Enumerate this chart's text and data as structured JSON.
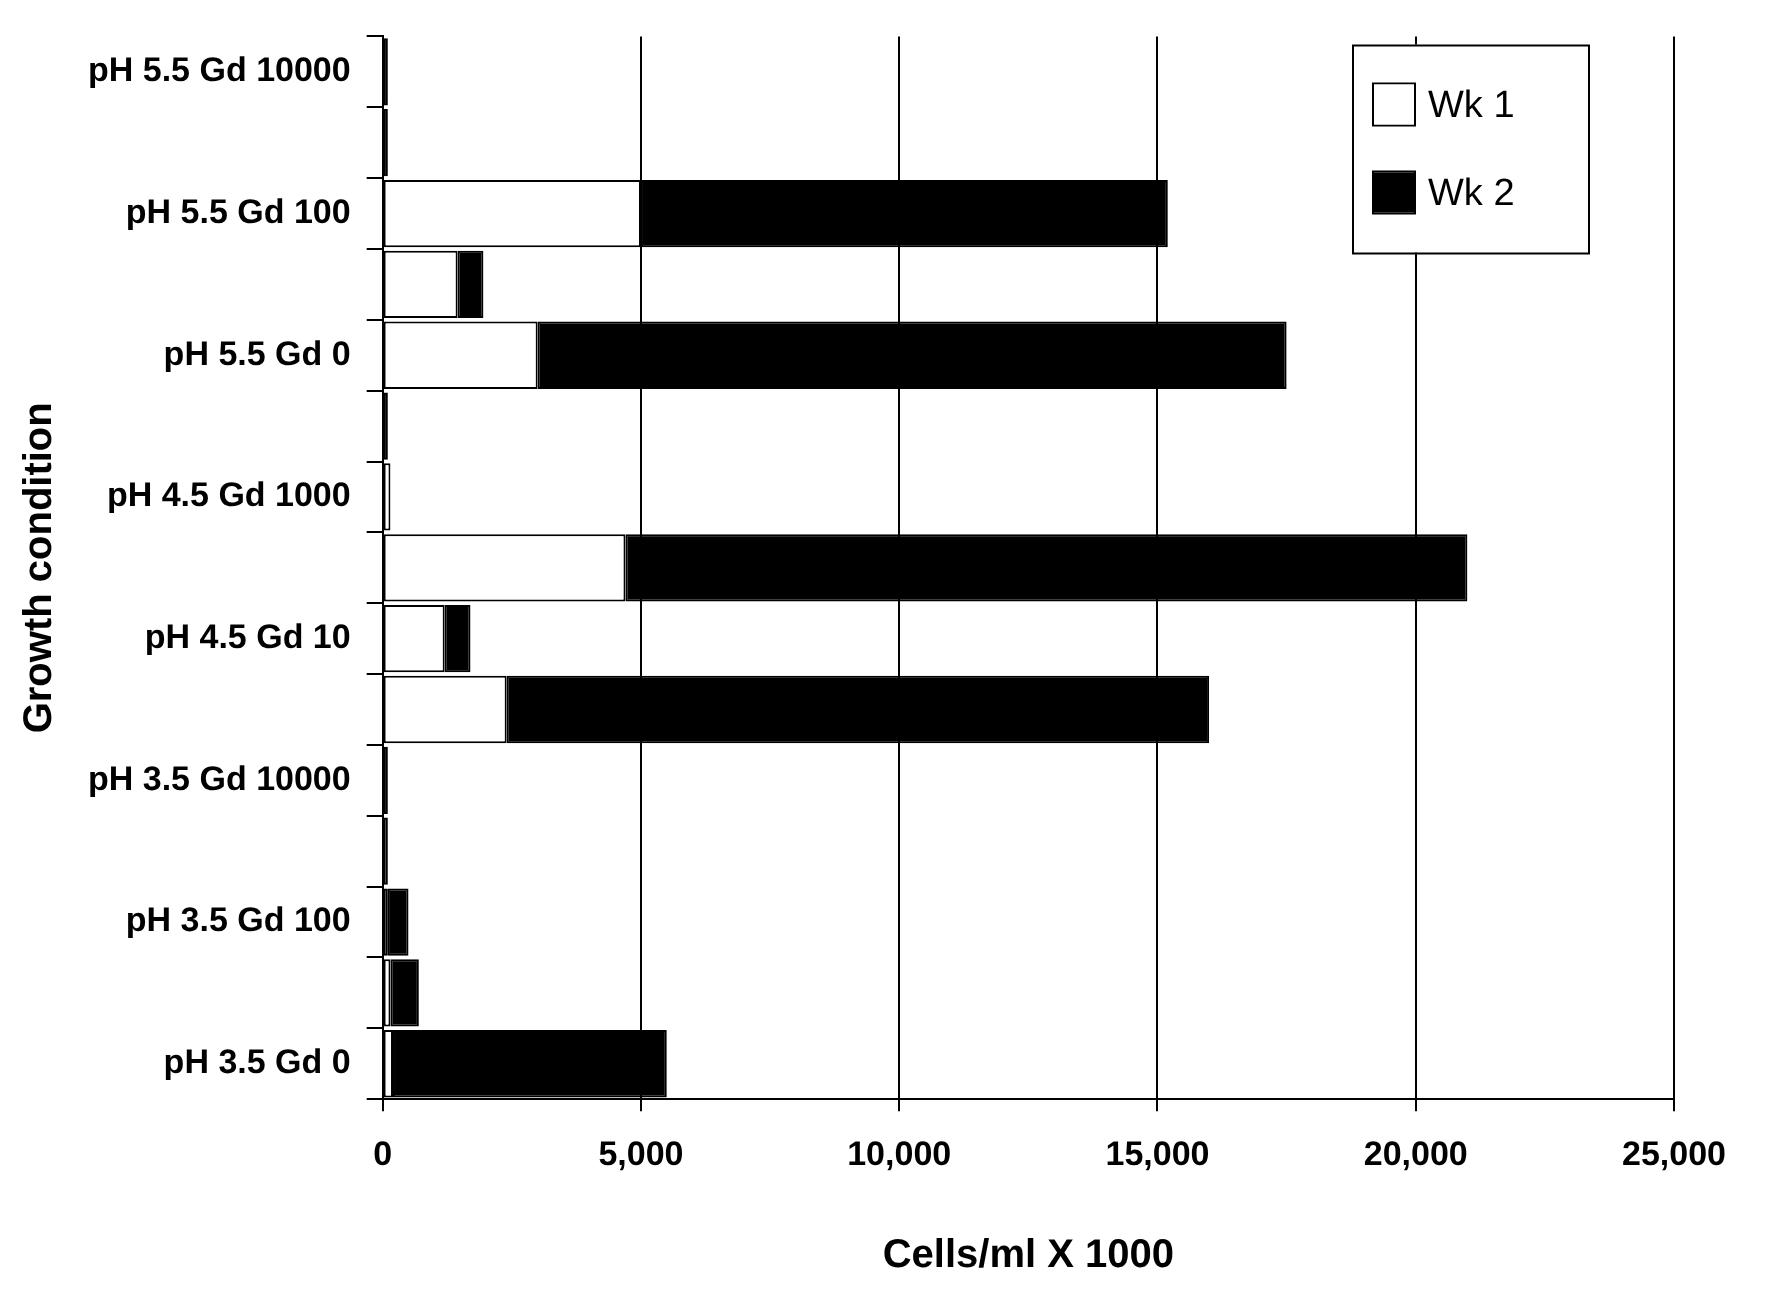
{
  "chart_data": {
    "type": "bar",
    "orientation": "horizontal",
    "stacked": true,
    "xlabel": "Cells/ml X 1000",
    "ylabel": "Growth condition",
    "categories": [
      "pH 5.5 Gd 10000",
      null,
      "pH 5.5 Gd 100",
      null,
      "pH 5.5 Gd 0",
      null,
      "pH 4.5 Gd 1000",
      null,
      "pH 4.5 Gd 10",
      null,
      "pH 3.5 Gd 10000",
      null,
      "pH 3.5 Gd 100",
      null,
      "pH 3.5 Gd 0"
    ],
    "series": [
      {
        "name": "Wk 1",
        "color": "#ffffff",
        "values": [
          0,
          0,
          5000,
          1450,
          3000,
          0,
          150,
          4700,
          1200,
          2400,
          0,
          100,
          100,
          150,
          200
        ]
      },
      {
        "name": "Wk 2",
        "color": "#000000",
        "values": [
          100,
          100,
          10200,
          500,
          14500,
          100,
          0,
          16300,
          500,
          13600,
          100,
          0,
          400,
          550,
          5300
        ]
      }
    ],
    "xlim": [
      0,
      25000
    ],
    "xticks": [
      {
        "value": 0,
        "label": "0"
      },
      {
        "value": 5000,
        "label": "5,000"
      },
      {
        "value": 10000,
        "label": "10,000"
      },
      {
        "value": 15000,
        "label": "15,000"
      },
      {
        "value": 20000,
        "label": "20,000"
      },
      {
        "value": 25000,
        "label": "25,000"
      }
    ],
    "grid": "x",
    "legend": "top right"
  }
}
